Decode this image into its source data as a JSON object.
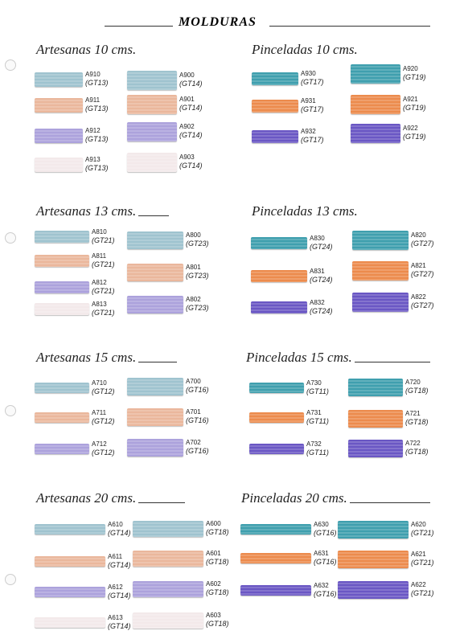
{
  "header": {
    "title": "MOLDURAS"
  },
  "sections": [
    {
      "title": "Artesanas 10 cms.",
      "left": [
        {
          "code": "A910",
          "group": "(GT13)"
        },
        {
          "code": "A911",
          "group": "(GT13)"
        },
        {
          "code": "A912",
          "group": "(GT13)"
        },
        {
          "code": "A913",
          "group": "(GT13)"
        }
      ],
      "right": [
        {
          "code": "A900",
          "group": "(GT14)"
        },
        {
          "code": "A901",
          "group": "(GT14)"
        },
        {
          "code": "A902",
          "group": "(GT14)"
        },
        {
          "code": "A903",
          "group": "(GT14)"
        }
      ]
    },
    {
      "title": "Pinceladas 10 cms.",
      "left": [
        {
          "code": "A930",
          "group": "(GT17)"
        },
        {
          "code": "A931",
          "group": "(GT17)"
        },
        {
          "code": "A932",
          "group": "(GT17)"
        }
      ],
      "right": [
        {
          "code": "A920",
          "group": "(GT19)"
        },
        {
          "code": "A921",
          "group": "(GT19)"
        },
        {
          "code": "A922",
          "group": "(GT19)"
        }
      ]
    },
    {
      "title": "Artesanas 13 cms.",
      "left": [
        {
          "code": "A810",
          "group": "(GT21)"
        },
        {
          "code": "A811",
          "group": "(GT21)"
        },
        {
          "code": "A812",
          "group": "(GT21)"
        },
        {
          "code": "A813",
          "group": "(GT21)"
        }
      ],
      "right": [
        {
          "code": "A800",
          "group": "(GT23)"
        },
        {
          "code": "A801",
          "group": "(GT23)"
        },
        {
          "code": "A802",
          "group": "(GT23)"
        }
      ]
    },
    {
      "title": "Pinceladas 13 cms.",
      "left": [
        {
          "code": "A830",
          "group": "(GT24)"
        },
        {
          "code": "A831",
          "group": "(GT24)"
        },
        {
          "code": "A832",
          "group": "(GT24)"
        }
      ],
      "right": [
        {
          "code": "A820",
          "group": "(GT27)"
        },
        {
          "code": "A821",
          "group": "(GT27)"
        },
        {
          "code": "A822",
          "group": "(GT27)"
        }
      ]
    },
    {
      "title": "Artesanas 15 cms.",
      "left": [
        {
          "code": "A710",
          "group": "(GT12)"
        },
        {
          "code": "A711",
          "group": "(GT12)"
        },
        {
          "code": "A712",
          "group": "(GT12)"
        }
      ],
      "right": [
        {
          "code": "A700",
          "group": "(GT16)"
        },
        {
          "code": "A701",
          "group": "(GT16)"
        },
        {
          "code": "A702",
          "group": "(GT16)"
        }
      ]
    },
    {
      "title": "Pinceladas 15 cms.",
      "left": [
        {
          "code": "A730",
          "group": "(GT11)"
        },
        {
          "code": "A731",
          "group": "(GT11)"
        },
        {
          "code": "A732",
          "group": "(GT11)"
        }
      ],
      "right": [
        {
          "code": "A720",
          "group": "(GT18)"
        },
        {
          "code": "A721",
          "group": "(GT18)"
        },
        {
          "code": "A722",
          "group": "(GT18)"
        }
      ]
    },
    {
      "title": "Artesanas 20 cms.",
      "left": [
        {
          "code": "A610",
          "group": "(GT14)"
        },
        {
          "code": "A611",
          "group": "(GT14)"
        },
        {
          "code": "A612",
          "group": "(GT14)"
        },
        {
          "code": "A613",
          "group": "(GT14)"
        }
      ],
      "right": [
        {
          "code": "A600",
          "group": "(GT18)"
        },
        {
          "code": "A601",
          "group": "(GT18)"
        },
        {
          "code": "A602",
          "group": "(GT18)"
        },
        {
          "code": "A603",
          "group": "(GT18)"
        }
      ]
    },
    {
      "title": "Pinceladas 20 cms.",
      "left": [
        {
          "code": "A630",
          "group": "(GT16)"
        },
        {
          "code": "A631",
          "group": "(GT16)"
        },
        {
          "code": "A632",
          "group": "(GT16)"
        }
      ],
      "right": [
        {
          "code": "A620",
          "group": "(GT21)"
        },
        {
          "code": "A621",
          "group": "(GT21)"
        },
        {
          "code": "A622",
          "group": "(GT21)"
        }
      ]
    }
  ]
}
